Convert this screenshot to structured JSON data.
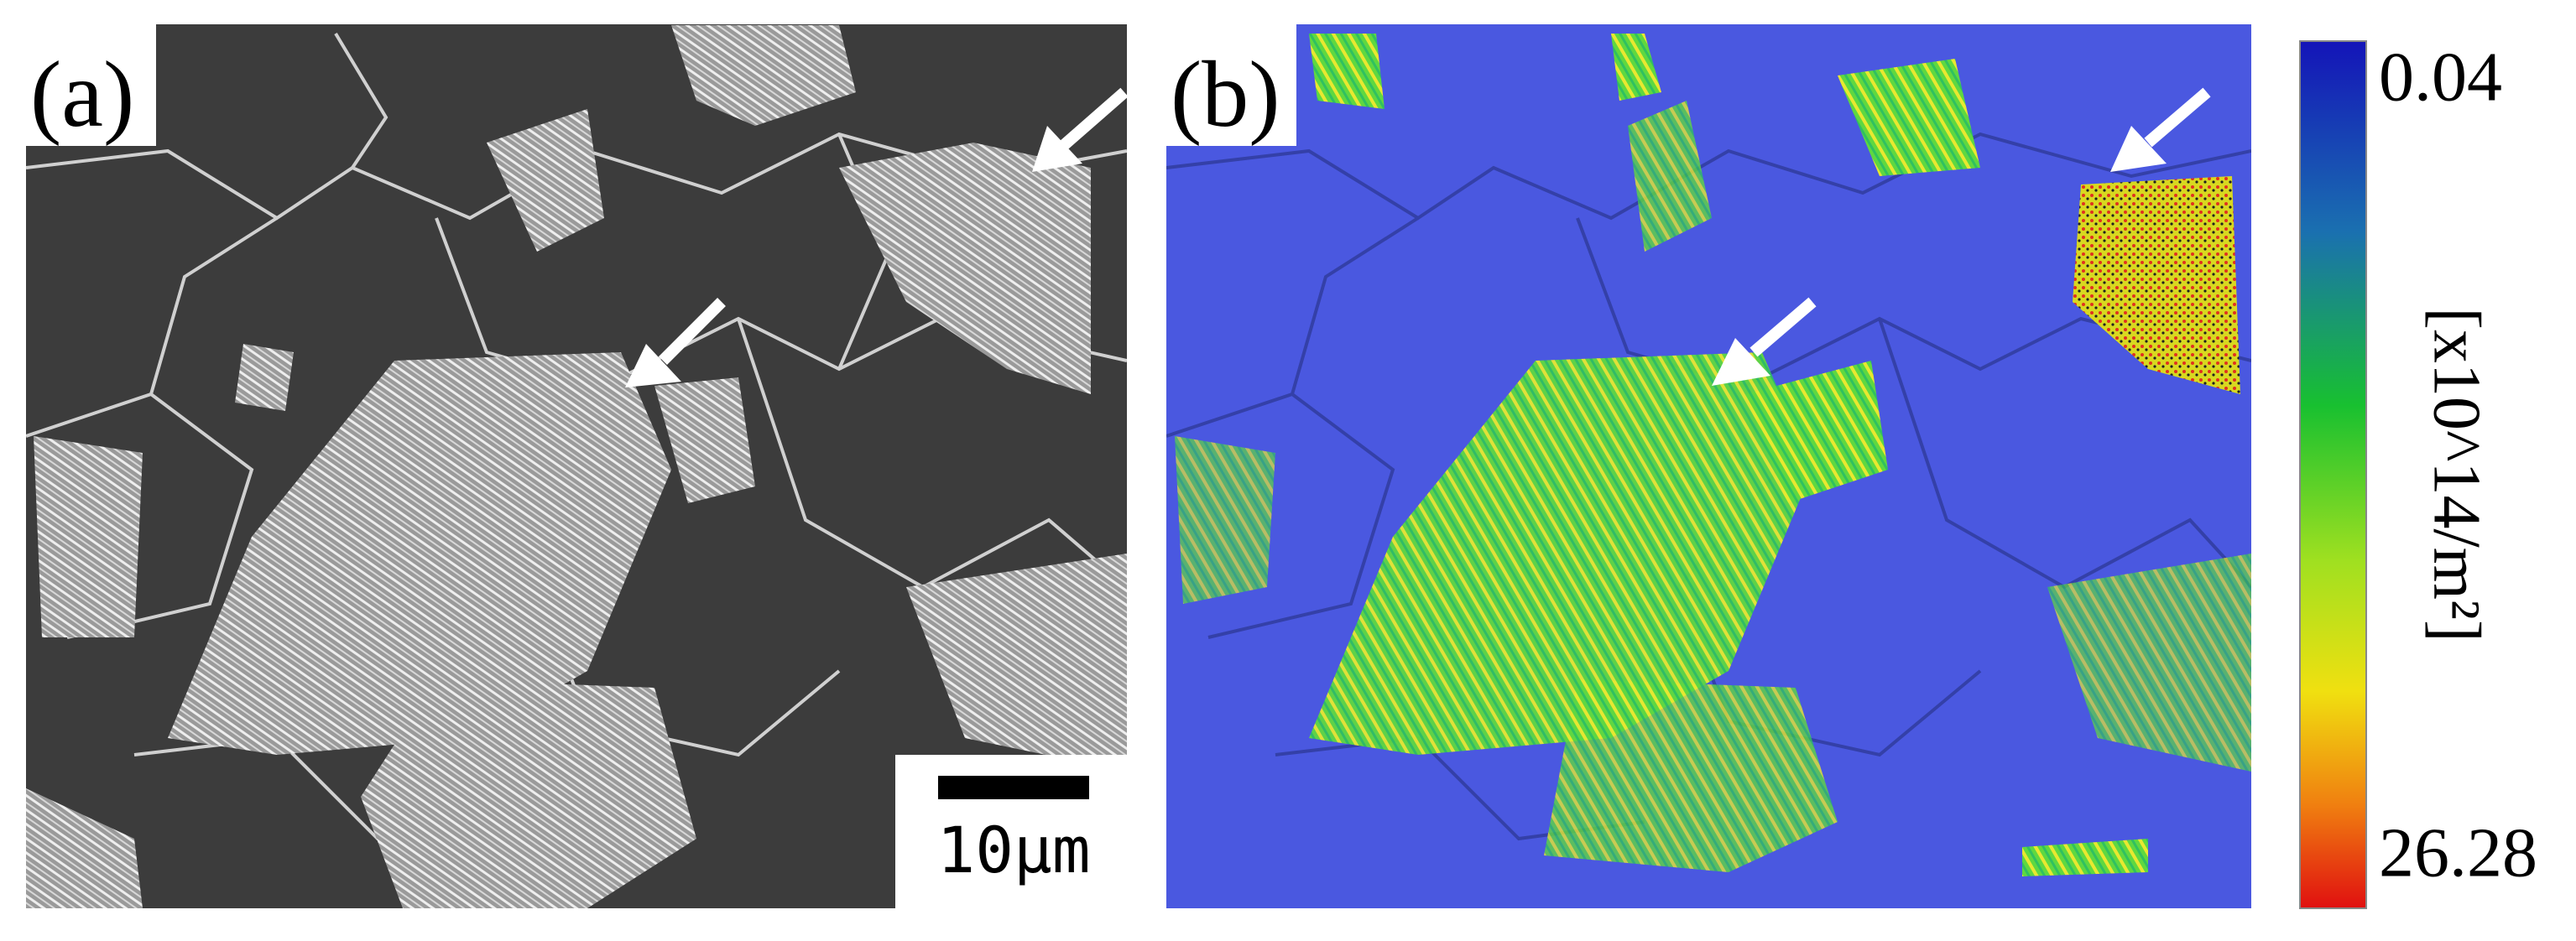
{
  "panels": [
    {
      "label": "(a)",
      "scale_bar": "10μm"
    },
    {
      "label": "(b)"
    }
  ],
  "colorbar": {
    "min": 0.04,
    "max": 26.28,
    "label": "[x10^14/m²]"
  }
}
